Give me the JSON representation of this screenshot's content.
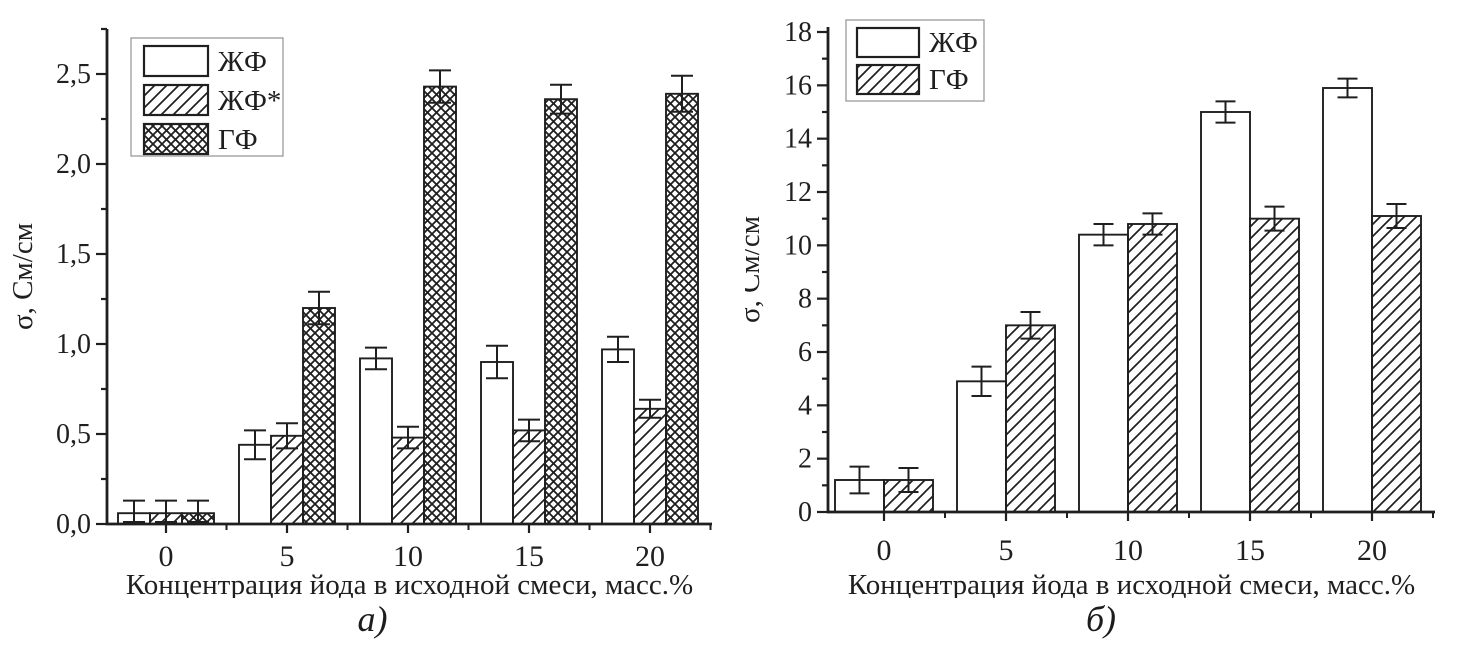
{
  "figure": {
    "background": "#ffffff",
    "ink_color": "#1f1f1f",
    "legend_border_color": "#9a9a9a"
  },
  "chart_data": [
    {
      "id": "a",
      "type": "bar",
      "title": "",
      "xlabel": "Концентрация йода в исходной смеси, масс.%",
      "ylabel": "σ, См/см",
      "caption": "а)",
      "categories": [
        "0",
        "5",
        "10",
        "15",
        "20"
      ],
      "ylim": [
        0,
        2.75
      ],
      "y_major_step": 0.5,
      "y_minor_step": 0.25,
      "y_tick_labels": [
        "0,0",
        "0,5",
        "1,0",
        "1,5",
        "2,0",
        "2,5"
      ],
      "grid": "off",
      "legend_position": "top-left-inside",
      "legend": [
        "ЖФ",
        "ЖФ*",
        "ГФ"
      ],
      "series": [
        {
          "name": "ЖФ",
          "pattern": "none",
          "values": [
            0.06,
            0.44,
            0.92,
            0.9,
            0.97
          ],
          "errors": [
            0.07,
            0.08,
            0.06,
            0.09,
            0.07
          ]
        },
        {
          "name": "ЖФ*",
          "pattern": "diagonal",
          "values": [
            0.06,
            0.49,
            0.48,
            0.52,
            0.64
          ],
          "errors": [
            0.07,
            0.07,
            0.06,
            0.06,
            0.05
          ]
        },
        {
          "name": "ГФ",
          "pattern": "crosshatch",
          "values": [
            0.06,
            1.2,
            2.43,
            2.36,
            2.39
          ],
          "errors": [
            0.07,
            0.09,
            0.09,
            0.08,
            0.1
          ]
        }
      ]
    },
    {
      "id": "b",
      "type": "bar",
      "title": "",
      "xlabel": "Концентрация йода в исходной смеси, масс.%",
      "ylabel": "σ, См/см",
      "caption": "б)",
      "categories": [
        "0",
        "5",
        "10",
        "15",
        "20"
      ],
      "ylim": [
        0,
        18
      ],
      "y_major_step": 2,
      "y_minor_step": 1,
      "y_tick_labels": [
        "0",
        "2",
        "4",
        "6",
        "8",
        "10",
        "12",
        "14",
        "16",
        "18"
      ],
      "grid": "off",
      "legend_position": "top-left-inside",
      "legend": [
        "ЖФ",
        "ГФ"
      ],
      "series": [
        {
          "name": "ЖФ",
          "pattern": "none",
          "values": [
            1.2,
            4.9,
            10.4,
            15.0,
            15.9
          ],
          "errors": [
            0.5,
            0.55,
            0.4,
            0.4,
            0.35
          ]
        },
        {
          "name": "ГФ",
          "pattern": "diagonal",
          "values": [
            1.2,
            7.0,
            10.8,
            11.0,
            11.1
          ],
          "errors": [
            0.45,
            0.5,
            0.4,
            0.45,
            0.45
          ]
        }
      ]
    }
  ]
}
